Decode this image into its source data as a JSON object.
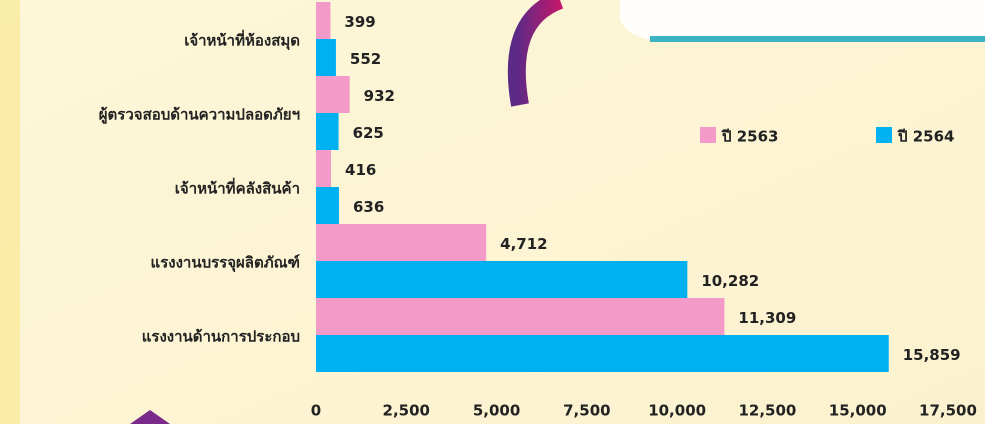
{
  "chart_data": {
    "type": "hbar",
    "categories": [
      "เจ้าหน้าที่ห้องสมุด",
      "ผู้ตรวจสอบด้านความปลอดภัยฯ",
      "เจ้าหน้าที่คลังสินค้า",
      "แรงงานบรรจุผลิตภัณฑ์",
      "แรงงานด้านการประกอบ"
    ],
    "series": [
      {
        "name": "ปี 2563",
        "color": "#f49ac9",
        "values": [
          399,
          932,
          416,
          4712,
          11309
        ],
        "value_labels": [
          "399",
          "932",
          "416",
          "4,712",
          "11,309"
        ]
      },
      {
        "name": "ปี 2564",
        "color": "#00b0f0",
        "values": [
          552,
          625,
          636,
          10282,
          15859
        ],
        "value_labels": [
          "552",
          "625",
          "636",
          "10,282",
          "15,859"
        ]
      }
    ],
    "xlim": [
      0,
      17500
    ],
    "xticks": [
      0,
      {
        "value": 2500,
        "label": "2,500"
      },
      {
        "value": 5000,
        "label": "5,000"
      },
      {
        "value": 7500,
        "label": "7,500"
      },
      {
        "value": 10000,
        "label": "10,000"
      },
      {
        "value": 12500,
        "label": "12,500"
      },
      {
        "value": 15000,
        "label": "15,000"
      },
      {
        "value": 17500,
        "label": "17,500"
      }
    ],
    "legend": "upper right",
    "grid": false
  }
}
